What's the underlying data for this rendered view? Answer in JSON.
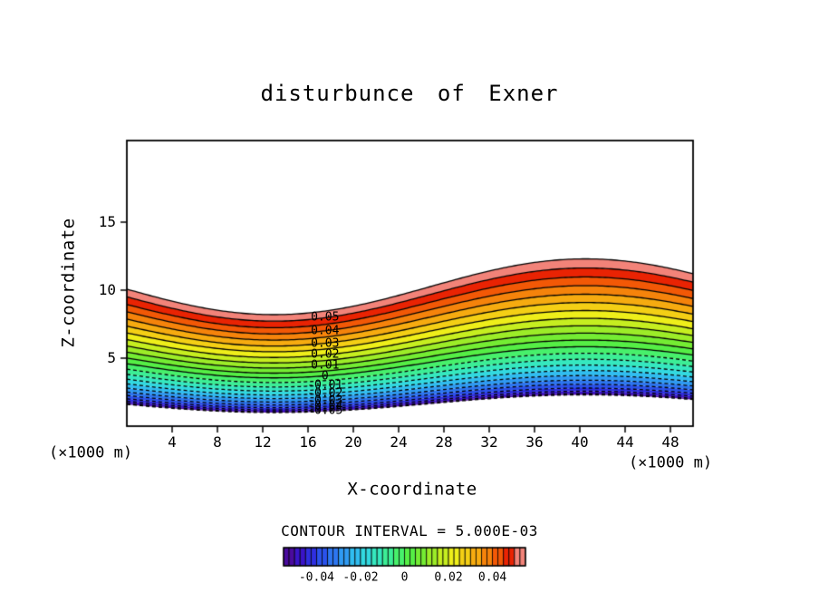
{
  "chart_data": {
    "type": "filled_contour",
    "title": "disturbunce of Exner",
    "xlabel": "X-coordinate",
    "ylabel": "Z-coordinate",
    "x_unit_left": "(×1000 m)",
    "x_unit_right": "(×1000 m)",
    "contour_interval_label": "CONTOUR INTERVAL = 5.000E-03",
    "contour_interval": 0.005,
    "x_range": [
      0,
      50
    ],
    "z_range": [
      0,
      21
    ],
    "x_ticks": [
      4,
      8,
      12,
      16,
      20,
      24,
      28,
      32,
      36,
      40,
      44,
      48
    ],
    "z_ticks": [
      5,
      10,
      15
    ],
    "line_color": "#000000",
    "negative_line_style": "dashed",
    "levels": [
      -0.055,
      -0.05,
      -0.045,
      -0.04,
      -0.035,
      -0.03,
      -0.025,
      -0.02,
      -0.015,
      -0.01,
      -0.005,
      0,
      0.005,
      0.01,
      0.015,
      0.02,
      0.025,
      0.03,
      0.035,
      0.04,
      0.045,
      0.05,
      0.055
    ],
    "surface_trough_z": [
      1.0,
      1.07,
      1.2,
      1.36,
      1.56,
      1.78,
      2.03,
      2.29,
      2.58,
      2.88,
      3.21,
      3.55,
      3.9,
      4.27,
      4.65,
      5.05,
      5.47,
      5.89,
      6.33,
      6.78,
      7.24,
      7.72,
      8.2
    ],
    "surface_crest_z": [
      2.3,
      2.4,
      2.57,
      2.8,
      3.08,
      3.38,
      3.72,
      4.09,
      4.49,
      4.92,
      5.36,
      5.84,
      6.33,
      6.84,
      7.38,
      7.93,
      8.5,
      9.09,
      9.7,
      10.33,
      10.97,
      11.63,
      12.3
    ],
    "wave": {
      "crest_x": 40.5,
      "trough_x": 13,
      "wavelength": 55
    },
    "label_x": 17.5,
    "contour_labels": [
      {
        "value": 0.05,
        "text": "0.05"
      },
      {
        "value": 0.04,
        "text": "0.04"
      },
      {
        "value": 0.03,
        "text": "0.03"
      },
      {
        "value": 0.02,
        "text": "0.02"
      },
      {
        "value": 0.01,
        "text": "0.01"
      },
      {
        "value": 0,
        "text": "0"
      },
      {
        "value": -0.01,
        "text": "-0.01"
      },
      {
        "value": -0.02,
        "text": "-0.02"
      },
      {
        "value": -0.03,
        "text": "-0.03"
      },
      {
        "value": -0.04,
        "text": "-0.04"
      },
      {
        "value": -0.05,
        "text": "-0.05"
      }
    ],
    "band_colors": [
      "#4a0b9e",
      "#3a14c8",
      "#2f2fe0",
      "#2b52ec",
      "#2d76f0",
      "#2f9af2",
      "#30bdf0",
      "#32d9e0",
      "#35e8bf",
      "#3cee96",
      "#47f06b",
      "#55ee45",
      "#74ec33",
      "#9cec28",
      "#c6ee20",
      "#eeee1a",
      "#f4cf15",
      "#f6ab10",
      "#f5830b",
      "#f25806",
      "#e92303",
      "#f28379"
    ],
    "colorbar": {
      "range": [
        -0.055,
        0.055
      ],
      "tick_values": [
        -0.04,
        -0.02,
        0,
        0.02,
        0.04
      ],
      "tick_labels": [
        "-0.04",
        "-0.02",
        "0",
        "0.02",
        "0.04"
      ]
    }
  }
}
